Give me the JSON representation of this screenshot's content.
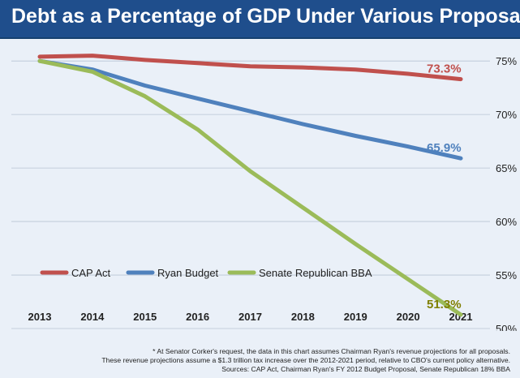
{
  "title": "Debt as a Percentage of GDP Under Various Proposals",
  "colors": {
    "title_bg": "#1f4e8c",
    "cap": "#c0504d",
    "ryan": "#4f81bd",
    "bba": "#9bbb59",
    "bba_label": "#7f7f00"
  },
  "chart_data": {
    "type": "line",
    "title": "Debt as a Percentage of GDP Under Various Proposals",
    "x": [
      "2013",
      "2014",
      "2015",
      "2016",
      "2017",
      "2018",
      "2019",
      "2020",
      "2021"
    ],
    "ylim": [
      50,
      76
    ],
    "yticks": [
      "50%",
      "55%",
      "60%",
      "65%",
      "70%",
      "75%"
    ],
    "ytick_values": [
      50,
      55,
      60,
      65,
      70,
      75
    ],
    "grid": true,
    "legend_position": "bottom-left",
    "series": [
      {
        "name": "CAP Act",
        "values": [
          75.4,
          75.5,
          75.1,
          74.8,
          74.5,
          74.4,
          74.2,
          73.8,
          73.3
        ],
        "end_label": "73.3%"
      },
      {
        "name": "Ryan Budget",
        "values": [
          75.0,
          74.2,
          72.7,
          71.5,
          70.3,
          69.1,
          68.0,
          67.0,
          65.9
        ],
        "end_label": "65.9%"
      },
      {
        "name": "Senate Republican BBA",
        "values": [
          75.0,
          74.0,
          71.7,
          68.6,
          64.7,
          61.3,
          57.9,
          54.6,
          51.3
        ],
        "end_label": "51.3%"
      }
    ]
  },
  "footnotes": [
    "* At Senator Corker's request, the data in this chart assumes Chairman Ryan's revenue projections for all proposals.",
    "These revenue projections assume a $1.3 trillion tax increase over the 2012-2021 period, relative to CBO's current policy alternative.",
    "Sources: CAP Act, Chairman Ryan's FY 2012 Budget Proposal, Senate Republican 18% BBA"
  ]
}
